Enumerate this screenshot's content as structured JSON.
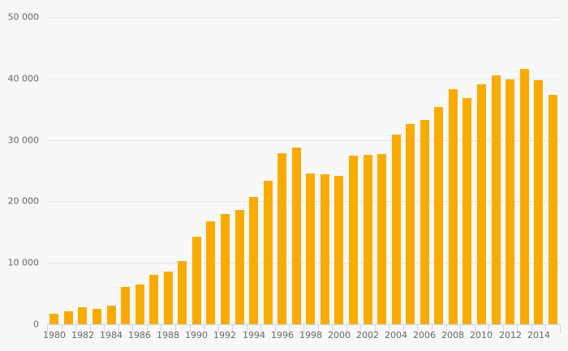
{
  "chart_data": {
    "type": "bar",
    "title": "",
    "xlabel": "",
    "ylabel": "",
    "categories": [
      1980,
      1981,
      1982,
      1983,
      1984,
      1985,
      1986,
      1987,
      1988,
      1989,
      1990,
      1991,
      1992,
      1993,
      1994,
      1995,
      1996,
      1997,
      1998,
      1999,
      2000,
      2001,
      2002,
      2003,
      2004,
      2005,
      2006,
      2007,
      2008,
      2009,
      2010,
      2011,
      2012,
      2013,
      2014,
      2015
    ],
    "values": [
      1700,
      2100,
      2800,
      2500,
      3100,
      6100,
      6500,
      8000,
      8600,
      10300,
      14300,
      16700,
      17900,
      18600,
      20700,
      23300,
      27800,
      28700,
      24600,
      24400,
      24100,
      27400,
      27600,
      27700,
      30900,
      32600,
      33200,
      35400,
      38200,
      36800,
      39100,
      40500,
      39800,
      41500,
      39700,
      37400
    ],
    "ylim": [
      0,
      50000
    ],
    "y_ticks": [
      0,
      10000,
      20000,
      30000,
      40000,
      50000
    ],
    "y_tick_labels": [
      "0",
      "10 000",
      "20 000",
      "30 000",
      "40 000",
      "50 000"
    ],
    "x_tick_label_step": 2,
    "x_tick_labels": [
      "1980",
      "1982",
      "1984",
      "1986",
      "1988",
      "1990",
      "1992",
      "1994",
      "1996",
      "1998",
      "2000",
      "2002",
      "2004",
      "2006",
      "2008",
      "2010",
      "2012",
      "2014"
    ],
    "grid": true,
    "legend": false
  },
  "colors": {
    "background": "#f8f8f8",
    "bar": "#faab00",
    "gridline": "#e5e5e5",
    "axis": "#ccd6eb",
    "label_text": "#666666"
  }
}
